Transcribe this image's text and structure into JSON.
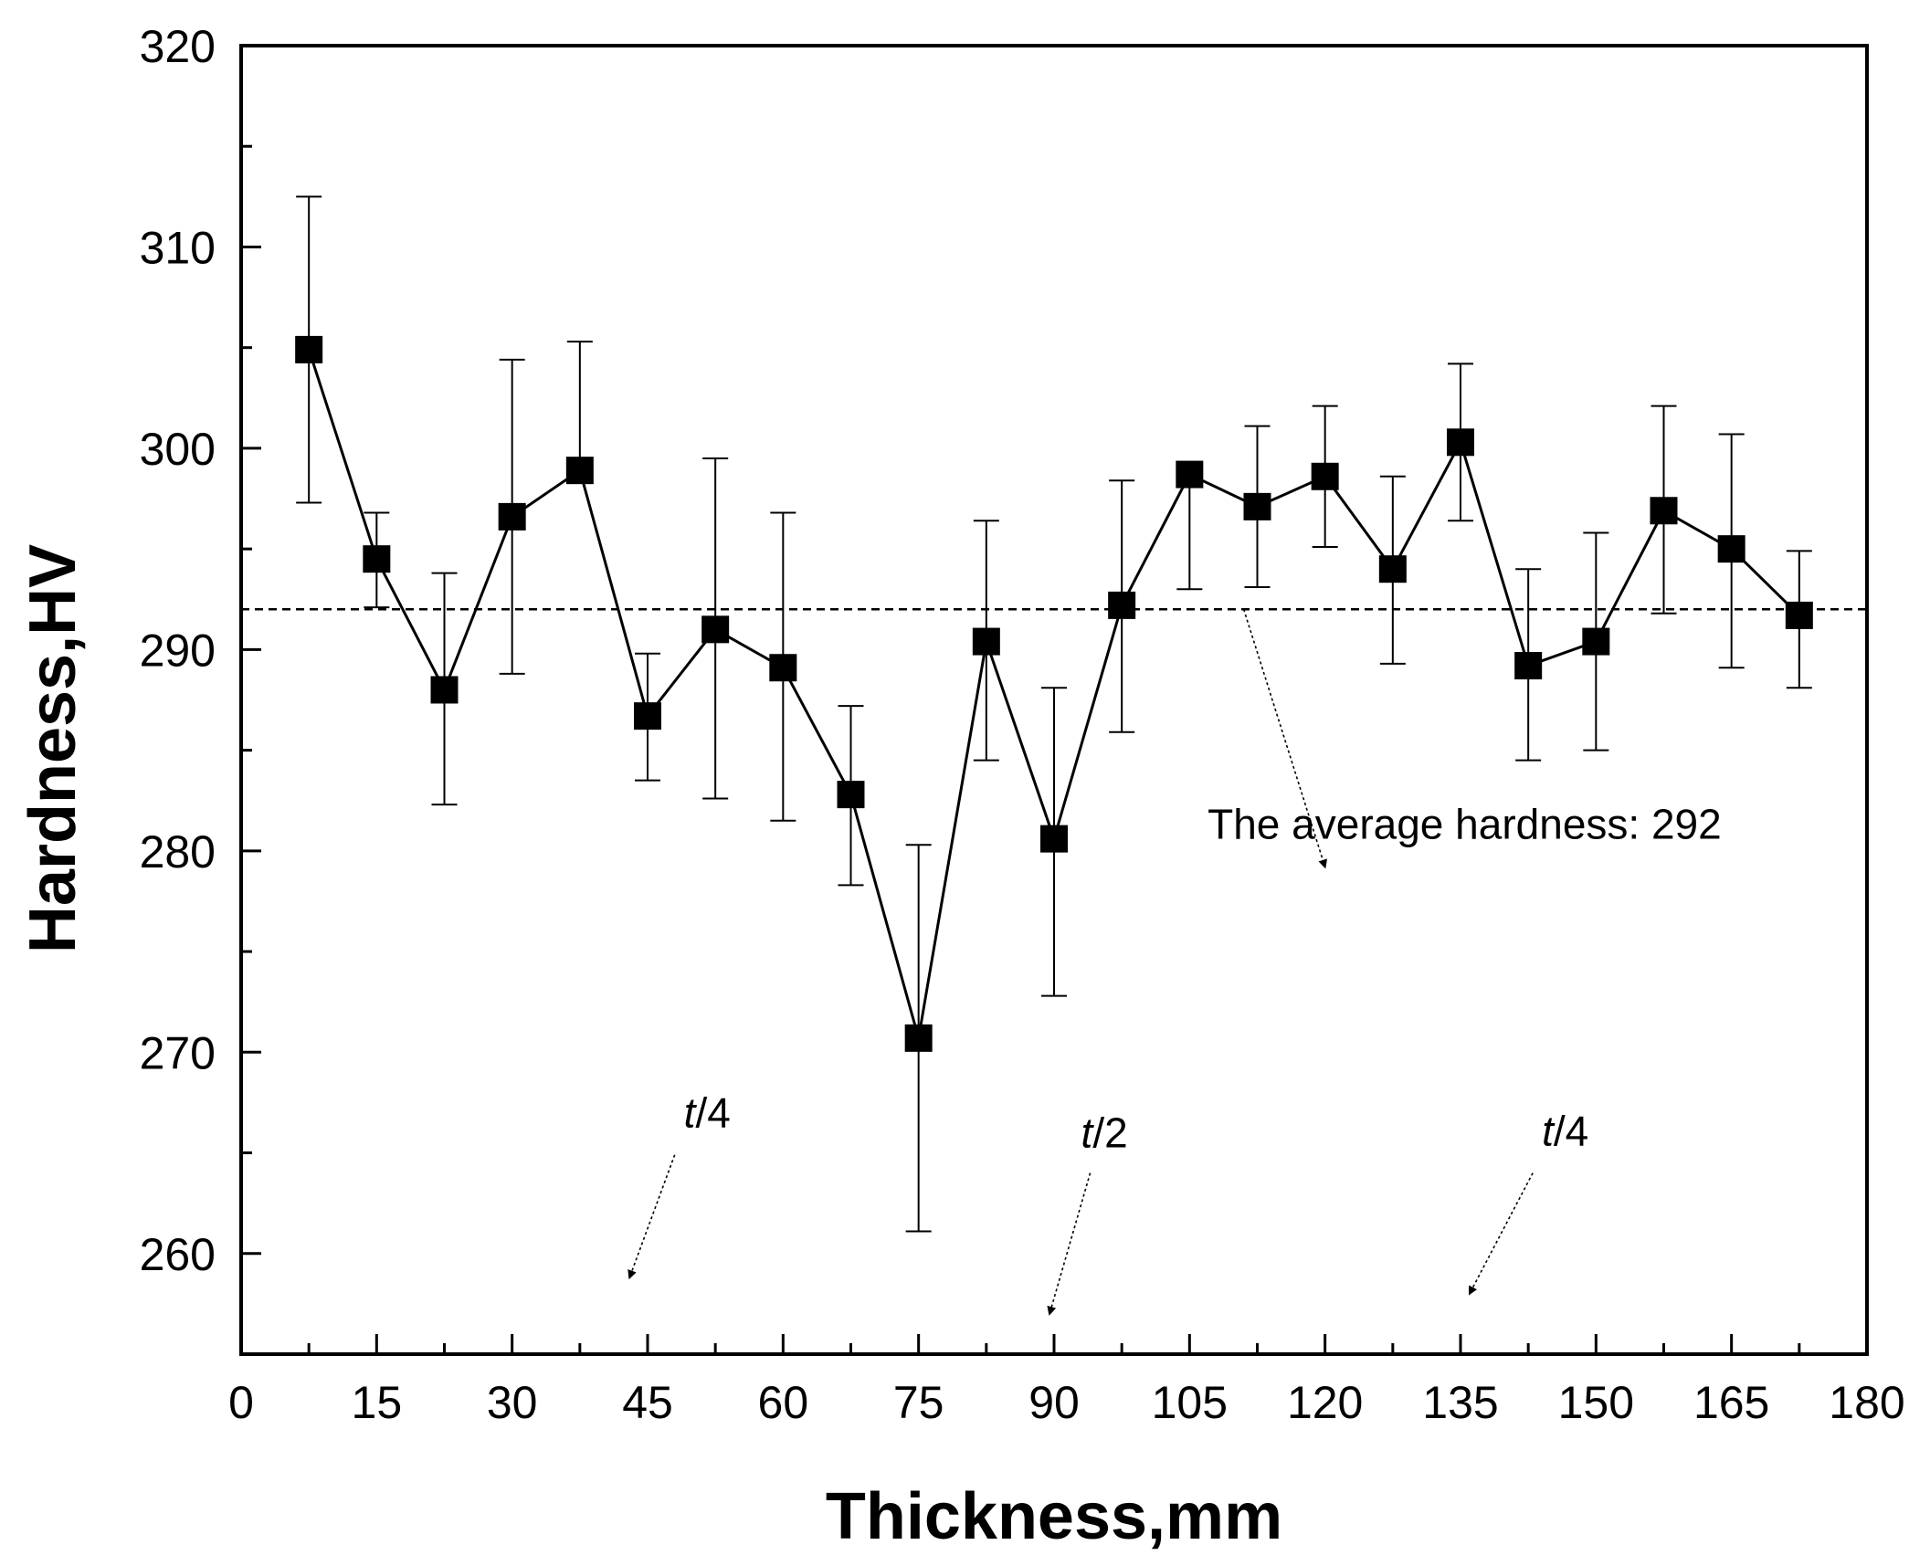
{
  "chart_data": {
    "type": "line",
    "title": "",
    "xlabel": "Thickness,mm",
    "ylabel": "Hardness,HV",
    "xlim": [
      0,
      180
    ],
    "ylim": [
      255,
      320
    ],
    "x_ticks": [
      0,
      15,
      30,
      45,
      60,
      75,
      90,
      105,
      120,
      135,
      150,
      165,
      180
    ],
    "y_ticks": [
      260,
      270,
      280,
      290,
      300,
      310,
      320
    ],
    "x_tick_labels": [
      "0",
      "15",
      "30",
      "45",
      "60",
      "75",
      "90",
      "105",
      "120",
      "135",
      "150",
      "165",
      "180"
    ],
    "y_tick_labels": [
      "260",
      "270",
      "280",
      "290",
      "300",
      "310",
      "320"
    ],
    "grid": false,
    "series": [
      {
        "name": "Hardness",
        "marker": "square",
        "color": "#000000",
        "x": [
          7.5,
          15,
          22.5,
          30,
          37.5,
          45,
          52.5,
          60,
          67.5,
          75,
          82.5,
          90,
          97.5,
          105,
          112.5,
          120,
          127.5,
          135,
          142.5,
          150,
          157.5,
          165,
          172.5
        ],
        "y": [
          304.9,
          294.5,
          288.0,
          296.6,
          298.9,
          286.7,
          291.0,
          289.1,
          282.8,
          270.7,
          290.4,
          280.6,
          292.2,
          298.7,
          297.1,
          298.6,
          294.0,
          300.3,
          289.2,
          290.4,
          296.9,
          295.0,
          291.7
        ],
        "err_low": [
          297.3,
          292.1,
          282.3,
          288.8,
          298.9,
          283.5,
          282.6,
          281.5,
          278.3,
          261.1,
          284.5,
          272.8,
          285.9,
          293.0,
          293.1,
          295.1,
          289.3,
          296.4,
          284.5,
          285.0,
          291.8,
          289.1,
          288.1
        ],
        "err_high": [
          312.5,
          296.8,
          293.8,
          304.4,
          305.3,
          289.8,
          299.5,
          296.8,
          287.2,
          280.3,
          296.4,
          288.1,
          298.4,
          298.7,
          301.1,
          302.1,
          298.6,
          304.2,
          294.0,
          295.8,
          302.1,
          300.7,
          294.9
        ]
      }
    ],
    "reference_line": {
      "y": 292,
      "style": "dashed"
    },
    "annotations": [
      {
        "text": "The average hardness: 292",
        "x": 107,
        "y": 280.6,
        "arrow_from": [
          111,
          292
        ],
        "arrow_to": [
          120,
          279.2
        ]
      },
      {
        "text": "t/4",
        "italic_part": "t",
        "x": 46,
        "y": 264.2,
        "arrow_from": [
          48,
          264.9
        ],
        "arrow_to": [
          43,
          258.8
        ]
      },
      {
        "text": "t/2",
        "italic_part": "t",
        "x": 94,
        "y": 263.6,
        "arrow_from": [
          94,
          264.0
        ],
        "arrow_to": [
          89.5,
          257.0
        ]
      },
      {
        "text": "t/4",
        "italic_part": "t",
        "x": 92,
        "y": 263.2,
        "arrow_from": [
          143,
          264.0
        ],
        "arrow_to": [
          136,
          258.0
        ]
      }
    ]
  }
}
